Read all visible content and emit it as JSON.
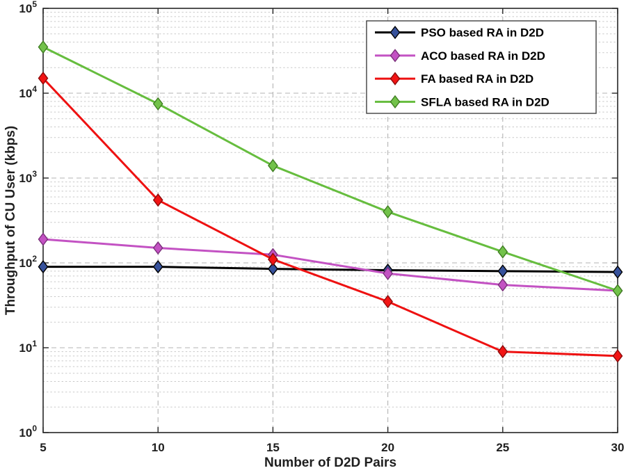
{
  "chart_data": {
    "type": "line",
    "title": "",
    "xlabel": "Number of D2D Pairs",
    "ylabel": "Throughput of CU User (kbps)",
    "x": [
      5,
      10,
      15,
      20,
      25,
      30
    ],
    "x_ticks": [
      5,
      10,
      15,
      20,
      25,
      30
    ],
    "xlim": [
      5,
      30
    ],
    "y_scale": "log10",
    "ylim_exp": [
      0,
      5
    ],
    "y_tick_exponents": [
      0,
      1,
      2,
      3,
      4,
      5
    ],
    "y_tick_labels": [
      "10^0",
      "10^1",
      "10^2",
      "10^3",
      "10^4",
      "10^5"
    ],
    "grid": {
      "major": true,
      "minor": true,
      "major_style": "dashed",
      "minor_style": "dotted",
      "major_color": "#b3b3b3",
      "minor_color": "#c8c8c8"
    },
    "legend": {
      "position": "top-right",
      "border_color": "#404040",
      "background": "#ffffff"
    },
    "axes_color": "#262626",
    "background": "#ffffff",
    "series": [
      {
        "name": "PSO based RA in D2D",
        "color": "#000000",
        "marker": "diamond",
        "marker_face": "#36519b",
        "marker_edge": "#000000",
        "values": [
          90,
          90,
          85,
          82,
          80,
          78
        ]
      },
      {
        "name": "ACO based RA in D2D",
        "color": "#c352c3",
        "marker": "diamond",
        "marker_face": "#c352c3",
        "marker_edge": "#7a2f7a",
        "values": [
          190,
          150,
          125,
          75,
          55,
          47
        ]
      },
      {
        "name": "FA based RA in D2D",
        "color": "#ee1111",
        "marker": "diamond",
        "marker_face": "#f21414",
        "marker_edge": "#8c0a0a",
        "values": [
          15000,
          550,
          110,
          35,
          9,
          8
        ]
      },
      {
        "name": "SFLA based RA in D2D",
        "color": "#66bd3e",
        "marker": "diamond",
        "marker_face": "#72c24a",
        "marker_edge": "#3f7d22",
        "values": [
          35000,
          7500,
          1400,
          400,
          135,
          47
        ]
      }
    ]
  }
}
